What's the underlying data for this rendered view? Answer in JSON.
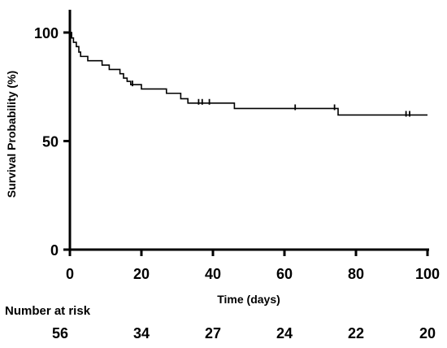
{
  "chart_data": {
    "type": "line",
    "subtype": "kaplan-meier step survival curve with censor ticks",
    "title": "",
    "xlabel": "Time (days)",
    "ylabel": "Survival Probability (%)",
    "xlim": [
      0,
      100
    ],
    "ylim": [
      0,
      100
    ],
    "xticks": [
      "0",
      "20",
      "40",
      "60",
      "80",
      "100"
    ],
    "yticks": [
      "0",
      "50",
      "100"
    ],
    "grid": false,
    "line_color": "#000000",
    "series": [
      {
        "steps": [
          {
            "x": 0,
            "y": 100
          },
          {
            "x": 0.5,
            "y": 97.5
          },
          {
            "x": 1,
            "y": 95.5
          },
          {
            "x": 1.8,
            "y": 93.5
          },
          {
            "x": 2.5,
            "y": 91
          },
          {
            "x": 3,
            "y": 89
          },
          {
            "x": 5,
            "y": 87
          },
          {
            "x": 9,
            "y": 85
          },
          {
            "x": 11,
            "y": 83
          },
          {
            "x": 14,
            "y": 81
          },
          {
            "x": 15,
            "y": 79
          },
          {
            "x": 16,
            "y": 77.5
          },
          {
            "x": 17,
            "y": 76
          },
          {
            "x": 20,
            "y": 74
          },
          {
            "x": 27,
            "y": 72
          },
          {
            "x": 31,
            "y": 69.5
          },
          {
            "x": 33,
            "y": 67.5
          },
          {
            "x": 46,
            "y": 65
          },
          {
            "x": 75,
            "y": 62
          },
          {
            "x": 100,
            "y": 62
          }
        ],
        "censored": [
          {
            "x": 17.5,
            "y": 76
          },
          {
            "x": 36,
            "y": 67.5
          },
          {
            "x": 37,
            "y": 67.5
          },
          {
            "x": 39,
            "y": 67.5
          },
          {
            "x": 63,
            "y": 65
          },
          {
            "x": 74,
            "y": 65
          },
          {
            "x": 94,
            "y": 62
          },
          {
            "x": 95,
            "y": 62
          }
        ]
      }
    ],
    "risk_table": {
      "title": "Number at risk",
      "times": [
        0,
        20,
        40,
        60,
        80,
        100
      ],
      "counts": [
        "56",
        "34",
        "27",
        "24",
        "22",
        "20"
      ]
    }
  }
}
